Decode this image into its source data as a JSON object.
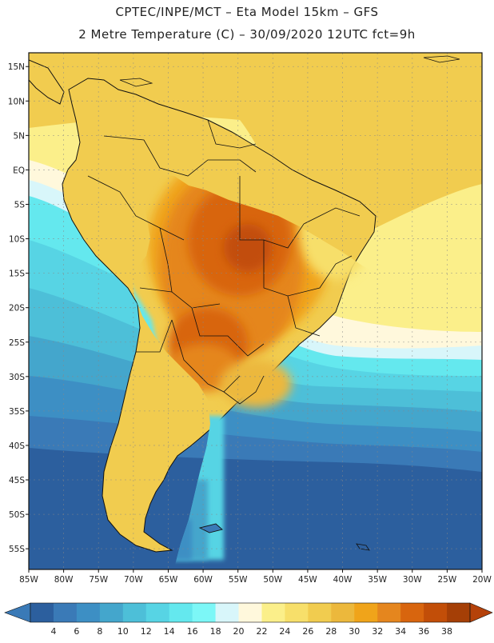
{
  "header": {
    "line1": "CPTEC/INPE/MCT –  Eta Model 15km – GFS",
    "line2": "2 Metre Temperature (C) – 30/09/2020 12UTC fct=9h"
  },
  "map": {
    "lat_labels": [
      "15N",
      "10N",
      "5N",
      "EQ",
      "5S",
      "10S",
      "15S",
      "20S",
      "25S",
      "30S",
      "35S",
      "40S",
      "45S",
      "50S",
      "55S"
    ],
    "lon_labels": [
      "85W",
      "80W",
      "75W",
      "70W",
      "65W",
      "60W",
      "55W",
      "50W",
      "45W",
      "40W",
      "35W",
      "30W",
      "25W",
      "20W"
    ],
    "lat_range": [
      17,
      -58
    ],
    "lon_range": [
      -85,
      -20
    ]
  },
  "legend": {
    "ticks": [
      "4",
      "6",
      "8",
      "10",
      "12",
      "14",
      "16",
      "18",
      "20",
      "22",
      "24",
      "26",
      "28",
      "30",
      "32",
      "34",
      "36",
      "38"
    ],
    "colors": [
      "#2c5f9e",
      "#3a7ab7",
      "#3d8fc4",
      "#44a6cc",
      "#4dbfd8",
      "#57d4e4",
      "#64e8ee",
      "#7cf7f7",
      "#d8f6fa",
      "#fff8dc",
      "#fbef8a",
      "#f7df6a",
      "#f1cc4f",
      "#ecb83c",
      "#f0a41a",
      "#e5861e",
      "#d8650e",
      "#c24e08",
      "#a53f06"
    ],
    "under_color": "#3a7ab7",
    "over_color": "#b5420a"
  }
}
